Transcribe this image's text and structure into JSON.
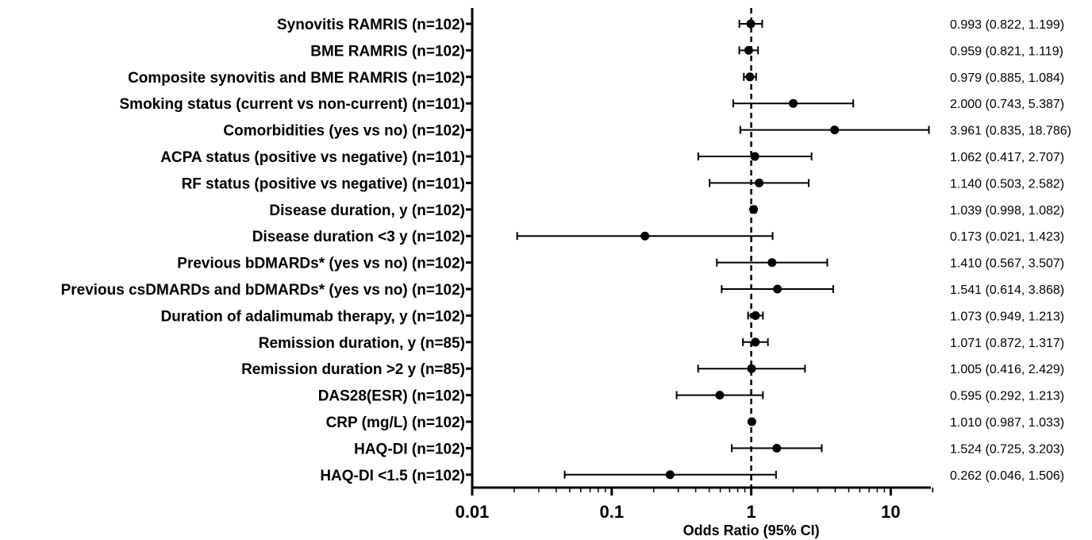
{
  "chart_data": {
    "type": "scatter",
    "subtype": "forest-plot",
    "title": "",
    "xlabel": "Odds Ratio (95% CI)",
    "ylabel": "",
    "xscale": "log",
    "xlim": [
      0.01,
      20
    ],
    "xticks": [
      0.01,
      0.1,
      1,
      10
    ],
    "xtick_labels": [
      "0.01",
      "0.1",
      "1",
      "10"
    ],
    "reference_line": 1,
    "grid": false,
    "legend": "none",
    "rows": [
      {
        "label": "Synovitis RAMRIS (n=102)",
        "or": 0.993,
        "low": 0.822,
        "high": 1.199,
        "ci_text": "0.993 (0.822, 1.199)"
      },
      {
        "label": "BME RAMRIS (n=102)",
        "or": 0.959,
        "low": 0.821,
        "high": 1.119,
        "ci_text": "0.959 (0.821, 1.119)"
      },
      {
        "label": "Composite synovitis and BME RAMRIS (n=102)",
        "or": 0.979,
        "low": 0.885,
        "high": 1.084,
        "ci_text": "0.979 (0.885, 1.084)"
      },
      {
        "label": "Smoking status (current vs non-current) (n=101)",
        "or": 2.0,
        "low": 0.743,
        "high": 5.387,
        "ci_text": "2.000 (0.743, 5.387)"
      },
      {
        "label": "Comorbidities (yes vs no) (n=102)",
        "or": 3.961,
        "low": 0.835,
        "high": 18.786,
        "ci_text": "3.961 (0.835, 18.786)"
      },
      {
        "label": "ACPA status (positive vs negative) (n=101)",
        "or": 1.062,
        "low": 0.417,
        "high": 2.707,
        "ci_text": "1.062 (0.417, 2.707)"
      },
      {
        "label": "RF status (positive vs negative) (n=101)",
        "or": 1.14,
        "low": 0.503,
        "high": 2.582,
        "ci_text": "1.140 (0.503, 2.582)"
      },
      {
        "label": "Disease duration, y (n=102)",
        "or": 1.039,
        "low": 0.998,
        "high": 1.082,
        "ci_text": "1.039 (0.998, 1.082)"
      },
      {
        "label": "Disease duration <3 y (n=102)",
        "or": 0.173,
        "low": 0.021,
        "high": 1.423,
        "ci_text": "0.173 (0.021, 1.423)"
      },
      {
        "label": "Previous bDMARDs* (yes vs no) (n=102)",
        "or": 1.41,
        "low": 0.567,
        "high": 3.507,
        "ci_text": "1.410 (0.567, 3.507)"
      },
      {
        "label": "Previous csDMARDs and bDMARDs* (yes vs no) (n=102)",
        "or": 1.541,
        "low": 0.614,
        "high": 3.868,
        "ci_text": "1.541 (0.614, 3.868)"
      },
      {
        "label": "Duration of adalimumab therapy, y (n=102)",
        "or": 1.073,
        "low": 0.949,
        "high": 1.213,
        "ci_text": "1.073 (0.949, 1.213)"
      },
      {
        "label": "Remission duration, y (n=85)",
        "or": 1.071,
        "low": 0.872,
        "high": 1.317,
        "ci_text": "1.071 (0.872, 1.317)"
      },
      {
        "label": "Remission duration >2 y (n=85)",
        "or": 1.005,
        "low": 0.416,
        "high": 2.429,
        "ci_text": "1.005 (0.416, 2.429)"
      },
      {
        "label": "DAS28(ESR) (n=102)",
        "or": 0.595,
        "low": 0.292,
        "high": 1.213,
        "ci_text": "0.595 (0.292, 1.213)"
      },
      {
        "label": "CRP (mg/L) (n=102)",
        "or": 1.01,
        "low": 0.987,
        "high": 1.033,
        "ci_text": "1.010 (0.987, 1.033)"
      },
      {
        "label": "HAQ-DI (n=102)",
        "or": 1.524,
        "low": 0.725,
        "high": 3.203,
        "ci_text": "1.524 (0.725, 3.203)"
      },
      {
        "label": "HAQ-DI <1.5 (n=102)",
        "or": 0.262,
        "low": 0.046,
        "high": 1.506,
        "ci_text": "0.262 (0.046, 1.506)"
      }
    ],
    "colors": {
      "marks": "#000000",
      "axis": "#000000"
    }
  }
}
